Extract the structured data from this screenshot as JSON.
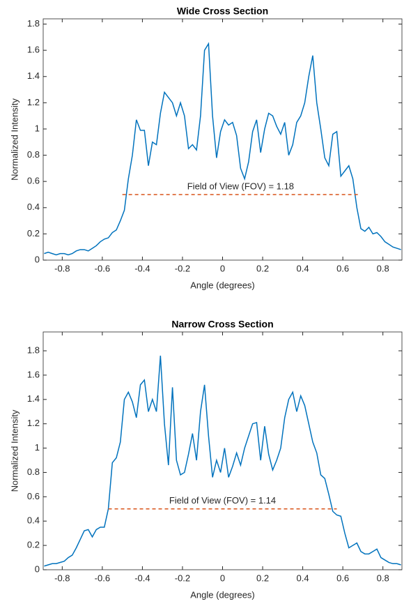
{
  "chart_data": [
    {
      "type": "line",
      "title": "Wide Cross Section",
      "x_label": "Angle (degrees)",
      "y_label": "Normalized Intensity",
      "x": [
        -0.89,
        -0.87,
        -0.85,
        -0.83,
        -0.81,
        -0.79,
        -0.77,
        -0.75,
        -0.73,
        -0.71,
        -0.69,
        -0.67,
        -0.65,
        -0.63,
        -0.61,
        -0.59,
        -0.57,
        -0.55,
        -0.53,
        -0.51,
        -0.49,
        -0.47,
        -0.45,
        -0.43,
        -0.41,
        -0.39,
        -0.37,
        -0.35,
        -0.33,
        -0.31,
        -0.29,
        -0.27,
        -0.25,
        -0.23,
        -0.21,
        -0.19,
        -0.17,
        -0.15,
        -0.13,
        -0.11,
        -0.09,
        -0.07,
        -0.05,
        -0.03,
        -0.01,
        0.01,
        0.03,
        0.05,
        0.07,
        0.09,
        0.11,
        0.13,
        0.15,
        0.17,
        0.19,
        0.21,
        0.23,
        0.25,
        0.27,
        0.29,
        0.31,
        0.33,
        0.35,
        0.37,
        0.39,
        0.41,
        0.43,
        0.45,
        0.47,
        0.49,
        0.51,
        0.53,
        0.55,
        0.57,
        0.59,
        0.61,
        0.63,
        0.65,
        0.67,
        0.69,
        0.71,
        0.73,
        0.75,
        0.77,
        0.79,
        0.81,
        0.83,
        0.85,
        0.87,
        0.89
      ],
      "series": [
        {
          "color": "#0072bd",
          "values": [
            0.05,
            0.06,
            0.05,
            0.04,
            0.05,
            0.05,
            0.04,
            0.05,
            0.07,
            0.08,
            0.08,
            0.07,
            0.09,
            0.11,
            0.14,
            0.16,
            0.17,
            0.21,
            0.23,
            0.3,
            0.38,
            0.62,
            0.8,
            1.07,
            0.99,
            0.99,
            0.72,
            0.9,
            0.88,
            1.12,
            1.28,
            1.24,
            1.2,
            1.1,
            1.2,
            1.1,
            0.85,
            0.88,
            0.84,
            1.1,
            1.6,
            1.65,
            1.1,
            0.78,
            0.98,
            1.07,
            1.03,
            1.05,
            0.95,
            0.7,
            0.62,
            0.75,
            0.98,
            1.07,
            0.82,
            1.0,
            1.12,
            1.1,
            1.02,
            0.96,
            1.05,
            0.8,
            0.88,
            1.05,
            1.1,
            1.2,
            1.4,
            1.56,
            1.2,
            1.0,
            0.78,
            0.72,
            0.96,
            0.98,
            0.64,
            0.68,
            0.72,
            0.62,
            0.4,
            0.24,
            0.22,
            0.25,
            0.2,
            0.21,
            0.18,
            0.14,
            0.12,
            0.1,
            0.09,
            0.08
          ]
        }
      ],
      "fov_line": {
        "x": [
          -0.5,
          0.68
        ],
        "y": 0.5,
        "color": "#d95319"
      },
      "annotation": "Field of View (FOV) = 1.18",
      "xlim": [
        -0.895,
        0.895
      ],
      "ylim": [
        0,
        1.84
      ],
      "xticks": [
        -0.8,
        -0.6,
        -0.4,
        -0.2,
        0,
        0.2,
        0.4,
        0.6,
        0.8
      ],
      "yticks": [
        0,
        0.2,
        0.4,
        0.6,
        0.8,
        1,
        1.2,
        1.4,
        1.6,
        1.8
      ]
    },
    {
      "type": "line",
      "title": "Narrow Cross Section",
      "x_label": "Angle (degrees)",
      "y_label": "Normalized Intensity",
      "x": [
        -0.89,
        -0.87,
        -0.85,
        -0.83,
        -0.81,
        -0.79,
        -0.77,
        -0.75,
        -0.73,
        -0.71,
        -0.69,
        -0.67,
        -0.65,
        -0.63,
        -0.61,
        -0.59,
        -0.57,
        -0.55,
        -0.53,
        -0.51,
        -0.49,
        -0.47,
        -0.45,
        -0.43,
        -0.41,
        -0.39,
        -0.37,
        -0.35,
        -0.33,
        -0.31,
        -0.29,
        -0.27,
        -0.25,
        -0.23,
        -0.21,
        -0.19,
        -0.17,
        -0.15,
        -0.13,
        -0.11,
        -0.09,
        -0.07,
        -0.05,
        -0.03,
        -0.01,
        0.01,
        0.03,
        0.05,
        0.07,
        0.09,
        0.11,
        0.13,
        0.15,
        0.17,
        0.19,
        0.21,
        0.23,
        0.25,
        0.27,
        0.29,
        0.31,
        0.33,
        0.35,
        0.37,
        0.39,
        0.41,
        0.43,
        0.45,
        0.47,
        0.49,
        0.51,
        0.53,
        0.55,
        0.57,
        0.59,
        0.61,
        0.63,
        0.65,
        0.67,
        0.69,
        0.71,
        0.73,
        0.75,
        0.77,
        0.79,
        0.81,
        0.83,
        0.85,
        0.87,
        0.89
      ],
      "series": [
        {
          "color": "#0072bd",
          "values": [
            0.03,
            0.04,
            0.05,
            0.05,
            0.06,
            0.07,
            0.1,
            0.12,
            0.18,
            0.25,
            0.32,
            0.33,
            0.27,
            0.33,
            0.35,
            0.35,
            0.5,
            0.88,
            0.92,
            1.05,
            1.4,
            1.46,
            1.38,
            1.25,
            1.52,
            1.56,
            1.3,
            1.4,
            1.3,
            1.76,
            1.2,
            0.86,
            1.5,
            0.9,
            0.78,
            0.8,
            0.95,
            1.12,
            0.9,
            1.3,
            1.52,
            1.1,
            0.76,
            0.9,
            0.8,
            1.0,
            0.76,
            0.85,
            0.96,
            0.86,
            1.0,
            1.1,
            1.2,
            1.21,
            0.9,
            1.18,
            0.95,
            0.82,
            0.9,
            1.0,
            1.25,
            1.4,
            1.46,
            1.3,
            1.43,
            1.35,
            1.2,
            1.05,
            0.96,
            0.78,
            0.75,
            0.62,
            0.48,
            0.45,
            0.44,
            0.3,
            0.18,
            0.2,
            0.22,
            0.15,
            0.13,
            0.13,
            0.15,
            0.17,
            0.1,
            0.08,
            0.06,
            0.05,
            0.05,
            0.04
          ]
        }
      ],
      "fov_line": {
        "x": [
          -0.57,
          0.57
        ],
        "y": 0.5,
        "color": "#d95319"
      },
      "annotation": "Field of View (FOV) = 1.14",
      "xlim": [
        -0.895,
        0.895
      ],
      "ylim": [
        0,
        1.955
      ],
      "xticks": [
        -0.8,
        -0.6,
        -0.4,
        -0.2,
        0,
        0.2,
        0.4,
        0.6,
        0.8
      ],
      "yticks": [
        0,
        0.2,
        0.4,
        0.6,
        0.8,
        1,
        1.2,
        1.4,
        1.6,
        1.8
      ]
    }
  ]
}
